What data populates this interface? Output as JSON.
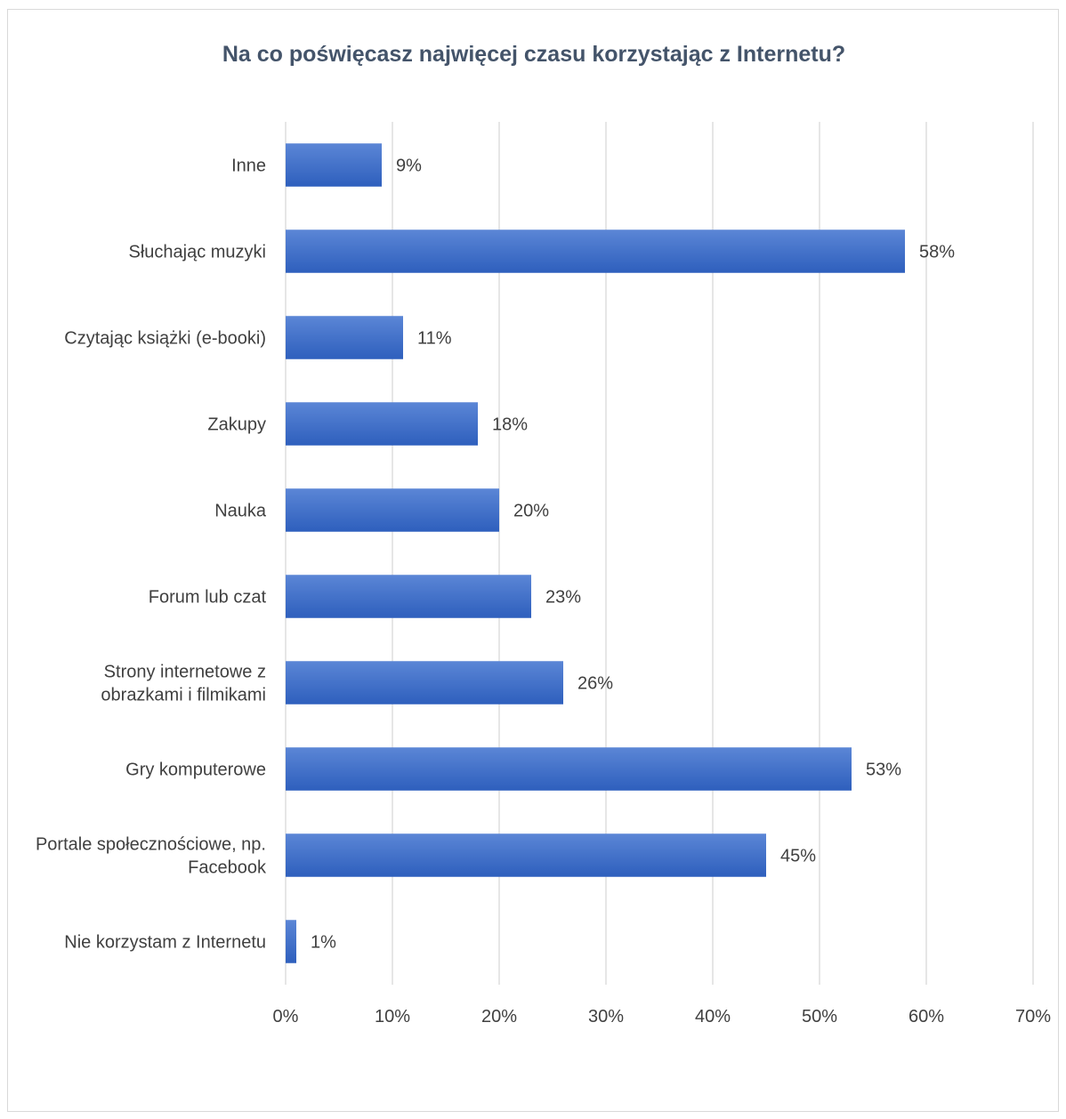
{
  "chart_data": {
    "type": "bar",
    "orientation": "horizontal",
    "title": "Na co poświęcasz najwięcej czasu korzystając z Internetu?",
    "xlabel": "",
    "ylabel": "",
    "categories": [
      [
        "Inne"
      ],
      [
        "Słuchając muzyki"
      ],
      [
        "Czytając książki (e-booki)"
      ],
      [
        "Zakupy"
      ],
      [
        "Nauka"
      ],
      [
        "Forum lub czat"
      ],
      [
        "Strony internetowe z",
        "obrazkami i filmikami"
      ],
      [
        "Gry komputerowe"
      ],
      [
        "Portale społecznościowe, np.",
        "Facebook"
      ],
      [
        "Nie korzystam z Internetu"
      ]
    ],
    "values": [
      9,
      58,
      11,
      18,
      20,
      23,
      26,
      53,
      45,
      1
    ],
    "data_labels": [
      "9%",
      "58%",
      "11%",
      "18%",
      "20%",
      "23%",
      "26%",
      "53%",
      "45%",
      "1%"
    ],
    "xlim": [
      0,
      70
    ],
    "ticks": [
      0,
      10,
      20,
      30,
      40,
      50,
      60,
      70
    ],
    "tick_labels": [
      "0%",
      "10%",
      "20%",
      "30%",
      "40%",
      "50%",
      "60%",
      "70%"
    ],
    "grid": true,
    "legend": "none",
    "colors": {
      "bar_top": "#5b86d6",
      "bar_bottom": "#2e5fbd",
      "grid": "#d9d9d9",
      "text": "#404040",
      "title": "#44546a"
    }
  }
}
